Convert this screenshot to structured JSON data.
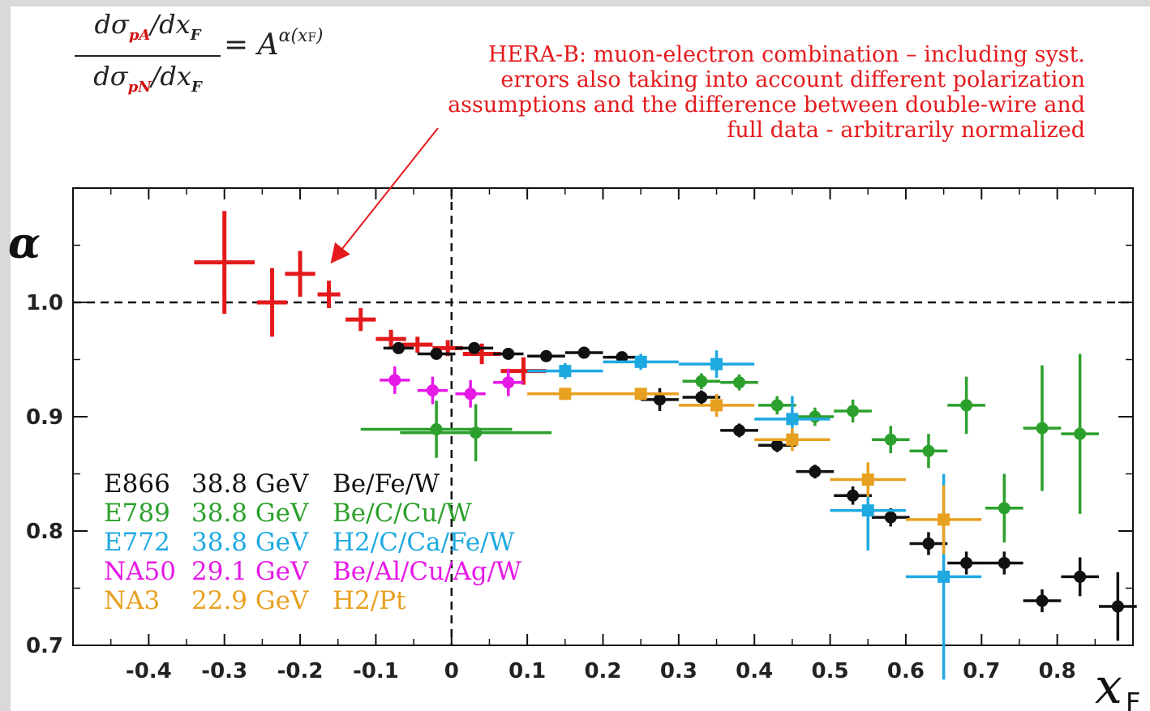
{
  "formula": {
    "numerator_a": "dσ",
    "numerator_b": "pA",
    "numerator_c": "/dx",
    "numerator_d": "F",
    "denominator_b": "pN",
    "equals": "= A",
    "exponent": "α(x"
  },
  "annotation": "HERA-B: muon-electron combination – including syst.\nerrors also taking into account different polarization\nassumptions and the difference between double-wire and\nfull data - arbitrarily normalized",
  "chart_data": {
    "type": "scatter",
    "title": "",
    "xlabel": "x",
    "xlabel_sub": "F",
    "ylabel": "α",
    "xlim": [
      -0.5,
      0.9
    ],
    "ylim": [
      0.7,
      1.1
    ],
    "x_ticks": [
      -0.4,
      -0.3,
      -0.2,
      -0.1,
      0,
      0.1,
      0.2,
      0.3,
      0.4,
      0.5,
      0.6,
      0.7,
      0.8
    ],
    "x_tick_labels": [
      "-0.4",
      "-0.3",
      "-0.2",
      "-0.1",
      "0",
      "0.1",
      "0.2",
      "0.3",
      "0.4",
      "0.5",
      "0.6",
      "0.7",
      "0.8"
    ],
    "y_ticks": [
      0.7,
      0.8,
      0.9,
      1.0
    ],
    "y_tick_labels": [
      "0.7",
      "0.8",
      "0.9",
      "1.0"
    ],
    "reference_lines": {
      "y": 1.0,
      "x": 0
    },
    "series": [
      {
        "name": "HERA-B",
        "color": "#e31a1c",
        "marker": "cross",
        "points": [
          {
            "x": -0.3,
            "y": 1.035,
            "xerr": 0.04,
            "yerr": 0.045
          },
          {
            "x": -0.237,
            "y": 1.0,
            "xerr": 0.02,
            "yerr": 0.03
          },
          {
            "x": -0.2,
            "y": 1.025,
            "xerr": 0.02,
            "yerr": 0.02
          },
          {
            "x": -0.162,
            "y": 1.007,
            "xerr": 0.015,
            "yerr": 0.012
          },
          {
            "x": -0.12,
            "y": 0.985,
            "xerr": 0.02,
            "yerr": 0.01
          },
          {
            "x": -0.08,
            "y": 0.968,
            "xerr": 0.02,
            "yerr": 0.008
          },
          {
            "x": -0.045,
            "y": 0.963,
            "xerr": 0.02,
            "yerr": 0.007
          },
          {
            "x": -0.005,
            "y": 0.96,
            "xerr": 0.02,
            "yerr": 0.007
          },
          {
            "x": 0.04,
            "y": 0.955,
            "xerr": 0.025,
            "yerr": 0.009
          },
          {
            "x": 0.095,
            "y": 0.94,
            "xerr": 0.03,
            "yerr": 0.012
          }
        ]
      },
      {
        "name": "E866",
        "color": "#111111",
        "marker": "dot",
        "points": [
          {
            "x": -0.07,
            "y": 0.96,
            "xerr": 0.02,
            "yerr": 0.004
          },
          {
            "x": -0.02,
            "y": 0.955,
            "xerr": 0.025,
            "yerr": 0.004
          },
          {
            "x": 0.03,
            "y": 0.96,
            "xerr": 0.025,
            "yerr": 0.004
          },
          {
            "x": 0.075,
            "y": 0.955,
            "xerr": 0.02,
            "yerr": 0.004
          },
          {
            "x": 0.125,
            "y": 0.953,
            "xerr": 0.025,
            "yerr": 0.004
          },
          {
            "x": 0.175,
            "y": 0.956,
            "xerr": 0.025,
            "yerr": 0.004
          },
          {
            "x": 0.225,
            "y": 0.952,
            "xerr": 0.025,
            "yerr": 0.004
          },
          {
            "x": 0.275,
            "y": 0.915,
            "xerr": 0.025,
            "yerr": 0.01
          },
          {
            "x": 0.33,
            "y": 0.917,
            "xerr": 0.025,
            "yerr": 0.006
          },
          {
            "x": 0.38,
            "y": 0.888,
            "xerr": 0.025,
            "yerr": 0.006
          },
          {
            "x": 0.43,
            "y": 0.875,
            "xerr": 0.025,
            "yerr": 0.006
          },
          {
            "x": 0.48,
            "y": 0.852,
            "xerr": 0.025,
            "yerr": 0.006
          },
          {
            "x": 0.53,
            "y": 0.831,
            "xerr": 0.025,
            "yerr": 0.008
          },
          {
            "x": 0.58,
            "y": 0.812,
            "xerr": 0.025,
            "yerr": 0.008
          },
          {
            "x": 0.63,
            "y": 0.789,
            "xerr": 0.025,
            "yerr": 0.01
          },
          {
            "x": 0.68,
            "y": 0.772,
            "xerr": 0.025,
            "yerr": 0.01
          },
          {
            "x": 0.73,
            "y": 0.772,
            "xerr": 0.025,
            "yerr": 0.01
          },
          {
            "x": 0.78,
            "y": 0.739,
            "xerr": 0.025,
            "yerr": 0.01
          },
          {
            "x": 0.83,
            "y": 0.76,
            "xerr": 0.025,
            "yerr": 0.017
          },
          {
            "x": 0.88,
            "y": 0.734,
            "xerr": 0.025,
            "yerr": 0.03
          }
        ]
      },
      {
        "name": "E789",
        "color": "#2ca02c",
        "marker": "dot",
        "points": [
          {
            "x": -0.02,
            "y": 0.889,
            "xerr": 0.1,
            "yerr": 0.025
          },
          {
            "x": 0.032,
            "y": 0.886,
            "xerr": 0.1,
            "yerr": 0.025
          },
          {
            "x": 0.33,
            "y": 0.931,
            "xerr": 0.025,
            "yerr": 0.007
          },
          {
            "x": 0.38,
            "y": 0.93,
            "xerr": 0.025,
            "yerr": 0.007
          },
          {
            "x": 0.43,
            "y": 0.91,
            "xerr": 0.025,
            "yerr": 0.008
          },
          {
            "x": 0.48,
            "y": 0.9,
            "xerr": 0.025,
            "yerr": 0.008
          },
          {
            "x": 0.53,
            "y": 0.905,
            "xerr": 0.025,
            "yerr": 0.01
          },
          {
            "x": 0.58,
            "y": 0.88,
            "xerr": 0.025,
            "yerr": 0.012
          },
          {
            "x": 0.63,
            "y": 0.87,
            "xerr": 0.025,
            "yerr": 0.015
          },
          {
            "x": 0.68,
            "y": 0.91,
            "xerr": 0.025,
            "yerr": 0.025
          },
          {
            "x": 0.73,
            "y": 0.82,
            "xerr": 0.025,
            "yerr": 0.03
          },
          {
            "x": 0.78,
            "y": 0.89,
            "xerr": 0.025,
            "yerr": 0.055
          },
          {
            "x": 0.83,
            "y": 0.885,
            "xerr": 0.025,
            "yerr": 0.07
          }
        ]
      },
      {
        "name": "E772",
        "color": "#1fa9e1",
        "marker": "square",
        "points": [
          {
            "x": 0.15,
            "y": 0.94,
            "xerr": 0.05,
            "yerr": 0.007
          },
          {
            "x": 0.25,
            "y": 0.948,
            "xerr": 0.05,
            "yerr": 0.007
          },
          {
            "x": 0.35,
            "y": 0.946,
            "xerr": 0.05,
            "yerr": 0.012
          },
          {
            "x": 0.45,
            "y": 0.898,
            "xerr": 0.05,
            "yerr": 0.02
          },
          {
            "x": 0.55,
            "y": 0.818,
            "xerr": 0.05,
            "yerr": 0.035
          },
          {
            "x": 0.65,
            "y": 0.76,
            "xerr": 0.05,
            "yerr": 0.09
          }
        ]
      },
      {
        "name": "NA50",
        "color": "#e619e6",
        "marker": "dot",
        "points": [
          {
            "x": -0.075,
            "y": 0.932,
            "xerr": 0.02,
            "yerr": 0.012
          },
          {
            "x": -0.025,
            "y": 0.923,
            "xerr": 0.02,
            "yerr": 0.012
          },
          {
            "x": 0.025,
            "y": 0.92,
            "xerr": 0.02,
            "yerr": 0.012
          },
          {
            "x": 0.075,
            "y": 0.93,
            "xerr": 0.02,
            "yerr": 0.012
          }
        ]
      },
      {
        "name": "NA3",
        "color": "#e8a020",
        "marker": "square",
        "points": [
          {
            "x": 0.15,
            "y": 0.92,
            "xerr": 0.05,
            "yerr": 0.005
          },
          {
            "x": 0.25,
            "y": 0.92,
            "xerr": 0.05,
            "yerr": 0.005
          },
          {
            "x": 0.35,
            "y": 0.91,
            "xerr": 0.05,
            "yerr": 0.01
          },
          {
            "x": 0.45,
            "y": 0.88,
            "xerr": 0.05,
            "yerr": 0.01
          },
          {
            "x": 0.55,
            "y": 0.845,
            "xerr": 0.05,
            "yerr": 0.015
          },
          {
            "x": 0.65,
            "y": 0.81,
            "xerr": 0.05,
            "yerr": 0.03
          }
        ]
      }
    ],
    "legend": [
      {
        "experiment": "E866",
        "energy": "38.8 GeV",
        "targets": "Be/Fe/W",
        "color": "#111111"
      },
      {
        "experiment": "E789",
        "energy": "38.8 GeV",
        "targets": "Be/C/Cu/W",
        "color": "#2ca02c"
      },
      {
        "experiment": "E772",
        "energy": "38.8 GeV",
        "targets": "H2/C/Ca/Fe/W",
        "color": "#1fa9e1"
      },
      {
        "experiment": "NA50",
        "energy": "29.1 GeV",
        "targets": "Be/Al/Cu/Ag/W",
        "color": "#e619e6"
      },
      {
        "experiment": "NA3",
        "energy": "22.9 GeV",
        "targets": "H2/Pt",
        "color": "#e8a020"
      }
    ],
    "legend_position": "bottom-left"
  }
}
